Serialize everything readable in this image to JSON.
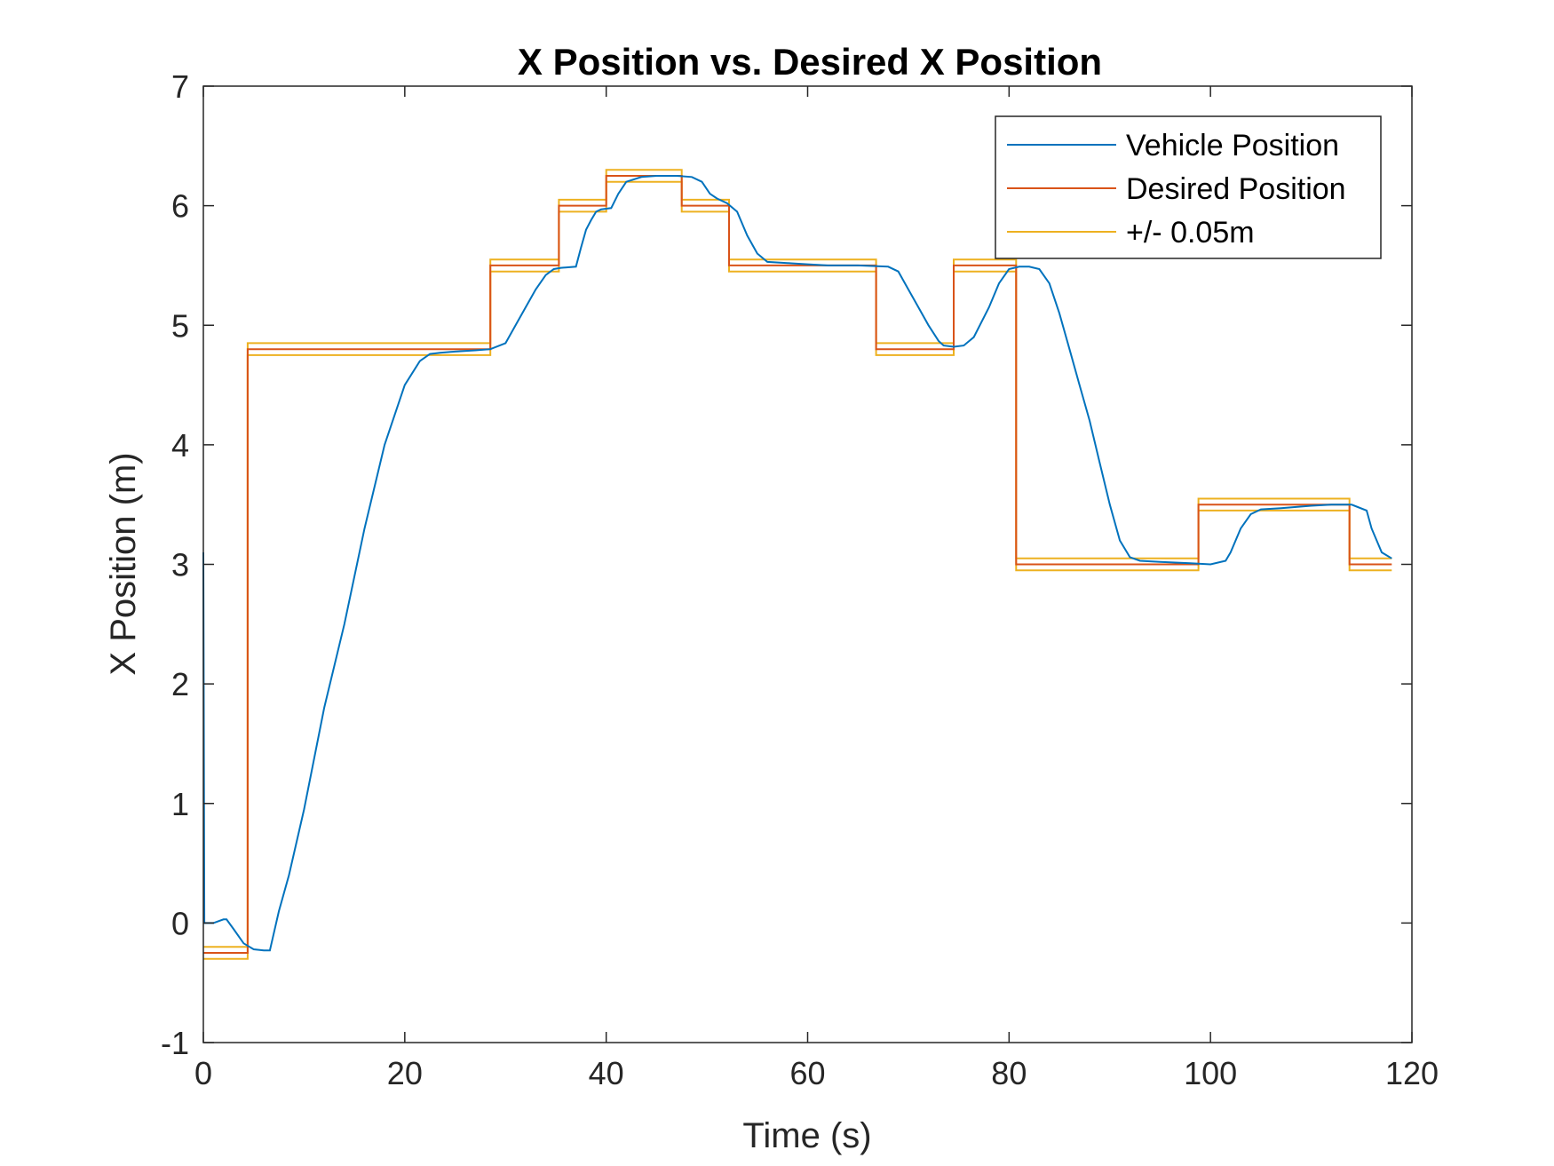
{
  "chart_data": {
    "type": "line",
    "title": "X Position vs. Desired X Position",
    "xlabel": "Time (s)",
    "ylabel": "X Position (m)",
    "xlim": [
      0,
      120
    ],
    "ylim": [
      -1,
      7
    ],
    "xticks": [
      0,
      20,
      40,
      60,
      80,
      100,
      120
    ],
    "yticks": [
      -1,
      0,
      1,
      2,
      3,
      4,
      5,
      6,
      7
    ],
    "grid": false,
    "legend_position": "top-right",
    "series": [
      {
        "name": "Vehicle Position",
        "color": "#0072BD",
        "x": [
          0,
          0.1,
          0.3,
          1,
          2,
          2.3,
          3,
          4,
          5,
          6,
          6.6,
          7.5,
          8.5,
          10,
          12,
          14,
          16,
          18,
          20,
          21.5,
          22.5,
          23.5,
          25,
          27,
          28.5,
          30,
          31,
          32,
          33,
          34,
          34.8,
          35.5,
          37,
          37.5,
          38,
          38.5,
          39,
          39.5,
          40.5,
          41.2,
          42,
          43.5,
          45,
          47,
          48.5,
          49.5,
          50.3,
          51,
          52,
          53,
          54,
          55,
          56,
          58,
          60,
          62,
          65,
          68,
          69,
          70,
          71,
          72,
          73,
          73.5,
          74.5,
          75.5,
          76.5,
          78,
          79,
          80,
          81,
          82,
          83,
          84,
          85,
          86,
          87,
          88,
          89,
          90,
          91,
          92,
          93,
          95,
          98,
          100,
          101.5,
          102,
          103,
          104,
          105,
          107,
          110,
          112,
          113,
          114,
          115.5,
          116,
          117,
          118
        ],
        "values": [
          3.1,
          0.0,
          0.0,
          0.0,
          0.03,
          0.03,
          -0.05,
          -0.17,
          -0.22,
          -0.23,
          -0.23,
          0.1,
          0.4,
          0.95,
          1.8,
          2.5,
          3.3,
          4.0,
          4.5,
          4.7,
          4.76,
          4.77,
          4.78,
          4.79,
          4.8,
          4.85,
          5.0,
          5.15,
          5.3,
          5.42,
          5.47,
          5.48,
          5.49,
          5.65,
          5.8,
          5.88,
          5.95,
          5.97,
          5.98,
          6.1,
          6.2,
          6.24,
          6.25,
          6.25,
          6.24,
          6.2,
          6.1,
          6.06,
          6.02,
          5.95,
          5.75,
          5.6,
          5.53,
          5.52,
          5.51,
          5.5,
          5.5,
          5.49,
          5.45,
          5.3,
          5.15,
          5.0,
          4.87,
          4.83,
          4.82,
          4.83,
          4.9,
          5.15,
          5.35,
          5.47,
          5.49,
          5.49,
          5.47,
          5.35,
          5.1,
          4.8,
          4.5,
          4.2,
          3.85,
          3.5,
          3.2,
          3.06,
          3.03,
          3.02,
          3.01,
          3.0,
          3.03,
          3.1,
          3.3,
          3.42,
          3.46,
          3.47,
          3.49,
          3.5,
          3.5,
          3.5,
          3.45,
          3.3,
          3.1,
          3.05
        ]
      },
      {
        "name": "Desired Position",
        "color": "#D95319",
        "x": [
          0,
          4.4,
          4.4,
          28.5,
          28.5,
          35.3,
          35.3,
          40,
          40,
          47.5,
          47.5,
          52.2,
          52.2,
          66.8,
          66.8,
          74.5,
          74.5,
          80.7,
          80.7,
          98.8,
          98.8,
          113.8,
          113.8,
          118
        ],
        "values": [
          -0.25,
          -0.25,
          4.8,
          4.8,
          5.5,
          5.5,
          6.0,
          6.0,
          6.25,
          6.25,
          6.0,
          6.0,
          5.5,
          5.5,
          4.8,
          4.8,
          5.5,
          5.5,
          3.0,
          3.0,
          3.5,
          3.5,
          3.0,
          3.0
        ]
      },
      {
        "name": "+/- 0.05m",
        "color": "#EDB120",
        "x": [
          0,
          4.4,
          4.4,
          28.5,
          28.5,
          35.3,
          35.3,
          40,
          40,
          47.5,
          47.5,
          52.2,
          52.2,
          66.8,
          66.8,
          74.5,
          74.5,
          80.7,
          80.7,
          98.8,
          98.8,
          113.8,
          113.8,
          118
        ],
        "values": [
          -0.2,
          -0.2,
          4.85,
          4.85,
          5.55,
          5.55,
          6.05,
          6.05,
          6.3,
          6.3,
          6.05,
          6.05,
          5.55,
          5.55,
          4.85,
          4.85,
          5.55,
          5.55,
          3.05,
          3.05,
          3.55,
          3.55,
          3.05,
          3.05
        ]
      },
      {
        "name": "",
        "color": "#EDB120",
        "x": [
          0,
          4.4,
          4.4,
          28.5,
          28.5,
          35.3,
          35.3,
          40,
          40,
          47.5,
          47.5,
          52.2,
          52.2,
          66.8,
          66.8,
          74.5,
          74.5,
          80.7,
          80.7,
          98.8,
          98.8,
          113.8,
          113.8,
          118
        ],
        "values": [
          -0.3,
          -0.3,
          4.75,
          4.75,
          5.45,
          5.45,
          5.95,
          5.95,
          6.2,
          6.2,
          5.95,
          5.95,
          5.45,
          5.45,
          4.75,
          4.75,
          5.45,
          5.45,
          2.95,
          2.95,
          3.45,
          3.45,
          2.95,
          2.95
        ]
      }
    ],
    "legend": [
      "Vehicle Position",
      "Desired Position",
      "+/- 0.05m"
    ]
  }
}
